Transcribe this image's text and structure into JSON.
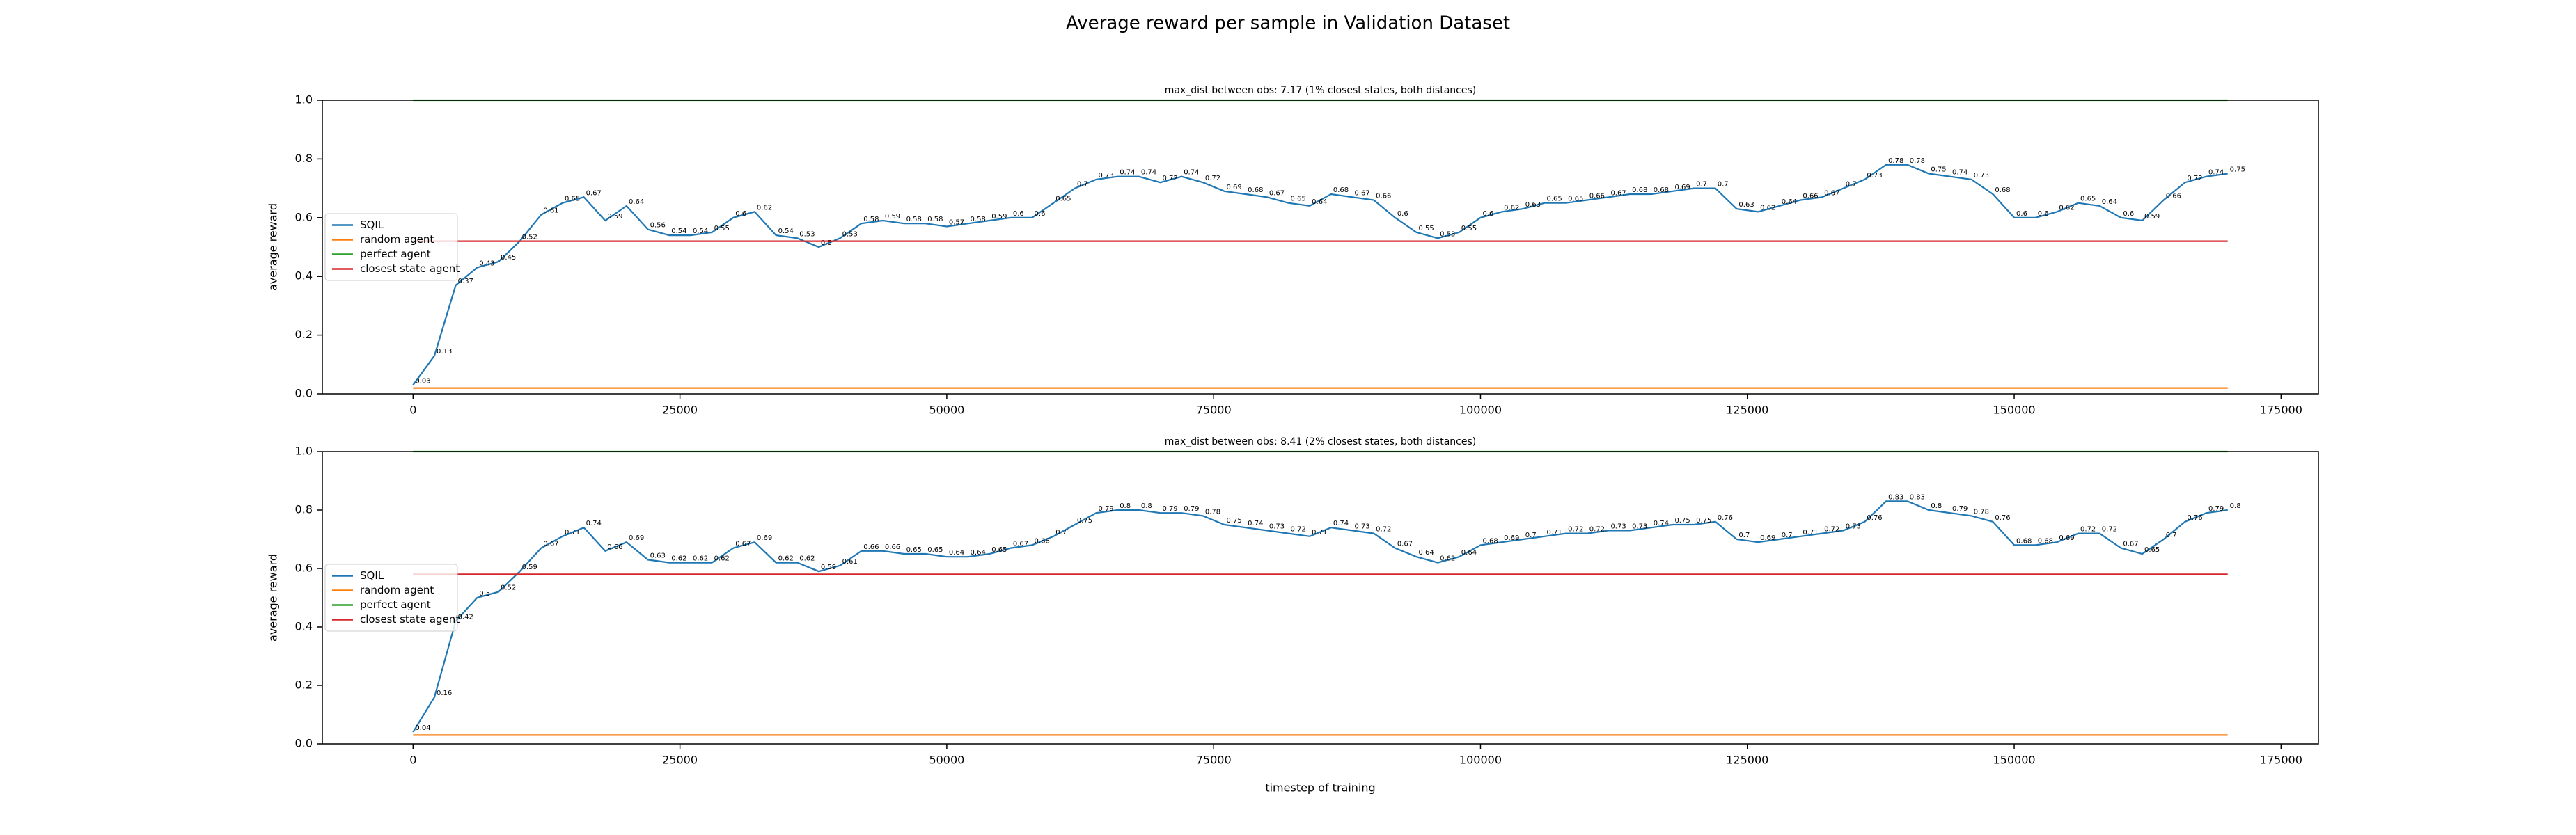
{
  "title": "Average reward per sample in Validation Dataset",
  "chart_data": [
    {
      "type": "line",
      "title": "max_dist between obs: 7.17 (1% closest states, both distances)",
      "ylabel": "average reward",
      "x": [
        0,
        2000,
        4000,
        6000,
        8000,
        10000,
        12000,
        14000,
        16000,
        18000,
        20000,
        22000,
        24000,
        26000,
        28000,
        30000,
        32000,
        34000,
        36000,
        38000,
        40000,
        42000,
        44000,
        46000,
        48000,
        50000,
        52000,
        54000,
        56000,
        58000,
        60000,
        62000,
        64000,
        66000,
        68000,
        70000,
        72000,
        74000,
        76000,
        78000,
        80000,
        82000,
        84000,
        86000,
        88000,
        90000,
        92000,
        94000,
        96000,
        98000,
        100000,
        102000,
        104000,
        106000,
        108000,
        110000,
        112000,
        114000,
        116000,
        118000,
        120000,
        122000,
        124000,
        126000,
        128000,
        130000,
        132000,
        134000,
        136000,
        138000,
        140000,
        142000,
        144000,
        146000,
        148000,
        150000,
        152000,
        154000,
        156000,
        158000,
        160000,
        162000,
        164000,
        166000,
        168000,
        170000
      ],
      "series": [
        {
          "name": "SQIL",
          "color": "#1f77b4",
          "data_labels": true,
          "values": [
            0.03,
            0.13,
            0.37,
            0.43,
            0.45,
            0.52,
            0.61,
            0.65,
            0.67,
            0.59,
            0.64,
            0.56,
            0.54,
            0.54,
            0.55,
            0.6,
            0.62,
            0.54,
            0.53,
            0.5,
            0.53,
            0.58,
            0.59,
            0.58,
            0.58,
            0.57,
            0.58,
            0.59,
            0.6,
            0.6,
            0.65,
            0.7,
            0.73,
            0.74,
            0.74,
            0.72,
            0.74,
            0.72,
            0.69,
            0.68,
            0.67,
            0.65,
            0.64,
            0.68,
            0.67,
            0.66,
            0.6,
            0.55,
            0.53,
            0.55,
            0.6,
            0.62,
            0.63,
            0.65,
            0.65,
            0.66,
            0.67,
            0.68,
            0.68,
            0.69,
            0.7,
            0.7,
            0.63,
            0.62,
            0.64,
            0.66,
            0.67,
            0.7,
            0.73,
            0.78,
            0.78,
            0.75,
            0.74,
            0.73,
            0.68,
            0.6,
            0.6,
            0.62,
            0.65,
            0.64,
            0.6,
            0.59,
            0.66,
            0.72,
            0.74,
            0.75
          ]
        },
        {
          "name": "random agent",
          "color": "#ff7f0e",
          "x": [
            0,
            170000
          ],
          "values": [
            0.02,
            0.02
          ]
        },
        {
          "name": "perfect agent",
          "color": "#2ca02c",
          "x": [
            0,
            170000
          ],
          "values": [
            1.0,
            1.0
          ]
        },
        {
          "name": "closest state agent",
          "color": "#d62728",
          "x": [
            0,
            170000
          ],
          "values": [
            0.52,
            0.52
          ]
        }
      ],
      "xlim": [
        -8500,
        178500
      ],
      "ylim": [
        0,
        1
      ],
      "xticks": [
        0,
        25000,
        50000,
        75000,
        100000,
        125000,
        150000,
        175000
      ],
      "yticks": [
        {
          "value": 0,
          "label": "0.0"
        },
        0.2,
        0.4,
        0.6,
        0.8,
        {
          "value": 1,
          "label": "1.0"
        }
      ],
      "legend": "center left"
    },
    {
      "type": "line",
      "title": "max_dist between obs: 8.41 (2% closest states, both distances)",
      "ylabel": "average reward",
      "xlabel": "timestep of training",
      "x": [
        0,
        2000,
        4000,
        6000,
        8000,
        10000,
        12000,
        14000,
        16000,
        18000,
        20000,
        22000,
        24000,
        26000,
        28000,
        30000,
        32000,
        34000,
        36000,
        38000,
        40000,
        42000,
        44000,
        46000,
        48000,
        50000,
        52000,
        54000,
        56000,
        58000,
        60000,
        62000,
        64000,
        66000,
        68000,
        70000,
        72000,
        74000,
        76000,
        78000,
        80000,
        82000,
        84000,
        86000,
        88000,
        90000,
        92000,
        94000,
        96000,
        98000,
        100000,
        102000,
        104000,
        106000,
        108000,
        110000,
        112000,
        114000,
        116000,
        118000,
        120000,
        122000,
        124000,
        126000,
        128000,
        130000,
        132000,
        134000,
        136000,
        138000,
        140000,
        142000,
        144000,
        146000,
        148000,
        150000,
        152000,
        154000,
        156000,
        158000,
        160000,
        162000,
        164000,
        166000,
        168000,
        170000
      ],
      "series": [
        {
          "name": "SQIL",
          "color": "#1f77b4",
          "data_labels": true,
          "values": [
            0.04,
            0.16,
            0.42,
            0.5,
            0.52,
            0.59,
            0.67,
            0.71,
            0.74,
            0.66,
            0.69,
            0.63,
            0.62,
            0.62,
            0.62,
            0.67,
            0.69,
            0.62,
            0.62,
            0.59,
            0.61,
            0.66,
            0.66,
            0.65,
            0.65,
            0.64,
            0.64,
            0.65,
            0.67,
            0.68,
            0.71,
            0.75,
            0.79,
            0.8,
            0.8,
            0.79,
            0.79,
            0.78,
            0.75,
            0.74,
            0.73,
            0.72,
            0.71,
            0.74,
            0.73,
            0.72,
            0.67,
            0.64,
            0.62,
            0.64,
            0.68,
            0.69,
            0.7,
            0.71,
            0.72,
            0.72,
            0.73,
            0.73,
            0.74,
            0.75,
            0.75,
            0.76,
            0.7,
            0.69,
            0.7,
            0.71,
            0.72,
            0.73,
            0.76,
            0.83,
            0.83,
            0.8,
            0.79,
            0.78,
            0.76,
            0.68,
            0.68,
            0.69,
            0.72,
            0.72,
            0.67,
            0.65,
            0.7,
            0.76,
            0.79,
            0.8
          ]
        },
        {
          "name": "random agent",
          "color": "#ff7f0e",
          "x": [
            0,
            170000
          ],
          "values": [
            0.03,
            0.03
          ]
        },
        {
          "name": "perfect agent",
          "color": "#2ca02c",
          "x": [
            0,
            170000
          ],
          "values": [
            1.0,
            1.0
          ]
        },
        {
          "name": "closest state agent",
          "color": "#d62728",
          "x": [
            0,
            170000
          ],
          "values": [
            0.58,
            0.58
          ]
        }
      ],
      "xlim": [
        -8500,
        178500
      ],
      "ylim": [
        0,
        1
      ],
      "xticks": [
        0,
        25000,
        50000,
        75000,
        100000,
        125000,
        150000,
        175000
      ],
      "yticks": [
        {
          "value": 0,
          "label": "0.0"
        },
        0.2,
        0.4,
        0.6,
        0.8,
        {
          "value": 1,
          "label": "1.0"
        }
      ],
      "legend": "center left"
    }
  ]
}
